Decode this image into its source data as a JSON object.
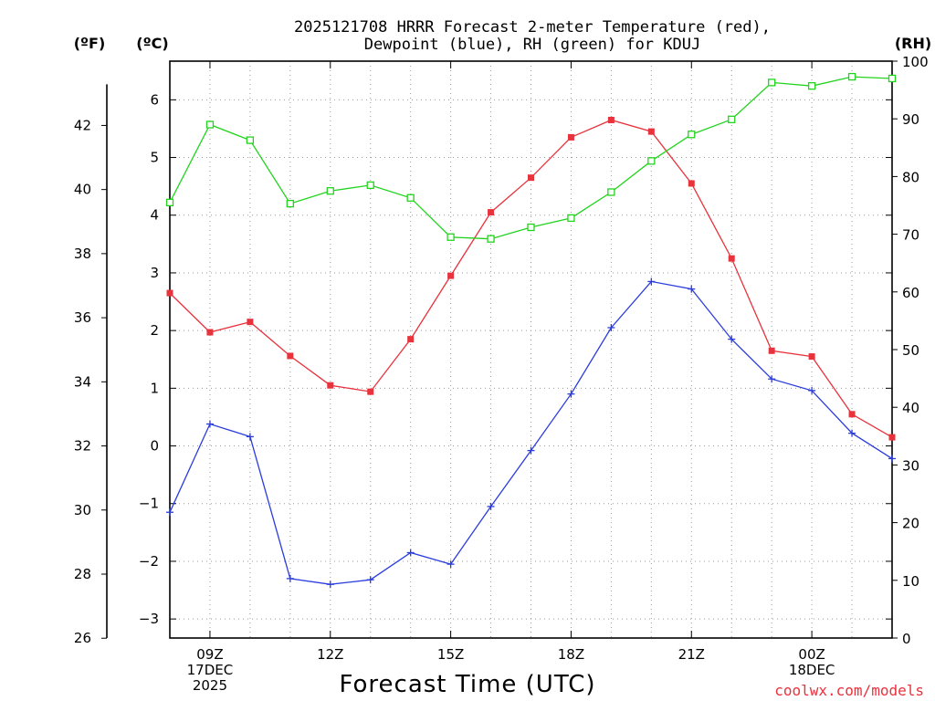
{
  "chart_data": {
    "type": "line",
    "title_line1": "2025121708 HRRR Forecast 2-meter Temperature (red),",
    "title_line2": "Dewpoint (blue), RH (green) for KDUJ",
    "xlabel": "Forecast Time (UTC)",
    "credit": "coolwx.com/models",
    "units": {
      "fahrenheit": "(ºF)",
      "celsius": "(ºC)",
      "rh": "(RH)"
    },
    "x_range_hours": [
      8,
      26
    ],
    "x_ticks": [
      {
        "hour": 9,
        "lines": [
          "09Z",
          "17DEC",
          "2025"
        ]
      },
      {
        "hour": 12,
        "lines": [
          "12Z"
        ]
      },
      {
        "hour": 15,
        "lines": [
          "15Z"
        ]
      },
      {
        "hour": 18,
        "lines": [
          "18Z"
        ]
      },
      {
        "hour": 21,
        "lines": [
          "21Z"
        ]
      },
      {
        "hour": 24,
        "lines": [
          "00Z",
          "18DEC"
        ]
      }
    ],
    "celsius_axis": {
      "min": -3.33,
      "max": 6.67,
      "ticks": [
        -3,
        -2,
        -1,
        0,
        1,
        2,
        3,
        4,
        5,
        6
      ],
      "tick_labels": [
        "−3",
        "−2",
        "−1",
        "0",
        "1",
        "2",
        "3",
        "4",
        "5",
        "6"
      ]
    },
    "fahrenheit_axis": {
      "ticks": [
        26,
        28,
        30,
        32,
        34,
        36,
        38,
        40,
        42
      ]
    },
    "rh_axis": {
      "min": 0,
      "max": 100,
      "ticks": [
        0,
        10,
        20,
        30,
        40,
        50,
        60,
        70,
        80,
        90,
        100
      ]
    },
    "hours": [
      8,
      9,
      10,
      11,
      12,
      13,
      14,
      15,
      16,
      17,
      18,
      19,
      20,
      21,
      22,
      23,
      24,
      25,
      26
    ],
    "series": [
      {
        "name": "2-meter Temperature",
        "unit": "C",
        "color": "#e8323c",
        "marker": "filled-square",
        "values": [
          2.65,
          1.97,
          2.15,
          1.56,
          1.05,
          0.94,
          1.85,
          2.95,
          4.05,
          4.65,
          5.35,
          5.65,
          5.45,
          4.55,
          3.25,
          1.65,
          1.55,
          0.55,
          0.15
        ]
      },
      {
        "name": "Dewpoint",
        "unit": "C",
        "color": "#2a3cdc",
        "marker": "plus",
        "values": [
          -1.15,
          0.38,
          0.16,
          -2.3,
          -2.4,
          -2.32,
          -1.85,
          -2.05,
          -1.05,
          -0.08,
          0.9,
          2.05,
          2.85,
          2.72,
          1.85,
          1.16,
          0.96,
          0.22,
          -0.22
        ]
      },
      {
        "name": "RH",
        "unit": "%",
        "color": "#22d41e",
        "marker": "open-square",
        "values": [
          75.5,
          89,
          86.3,
          75.3,
          77.5,
          78.5,
          76.3,
          69.5,
          69.2,
          71.2,
          72.8,
          77.3,
          82.7,
          87.3,
          89.9,
          96.3,
          95.7,
          97.3,
          97
        ]
      }
    ]
  }
}
